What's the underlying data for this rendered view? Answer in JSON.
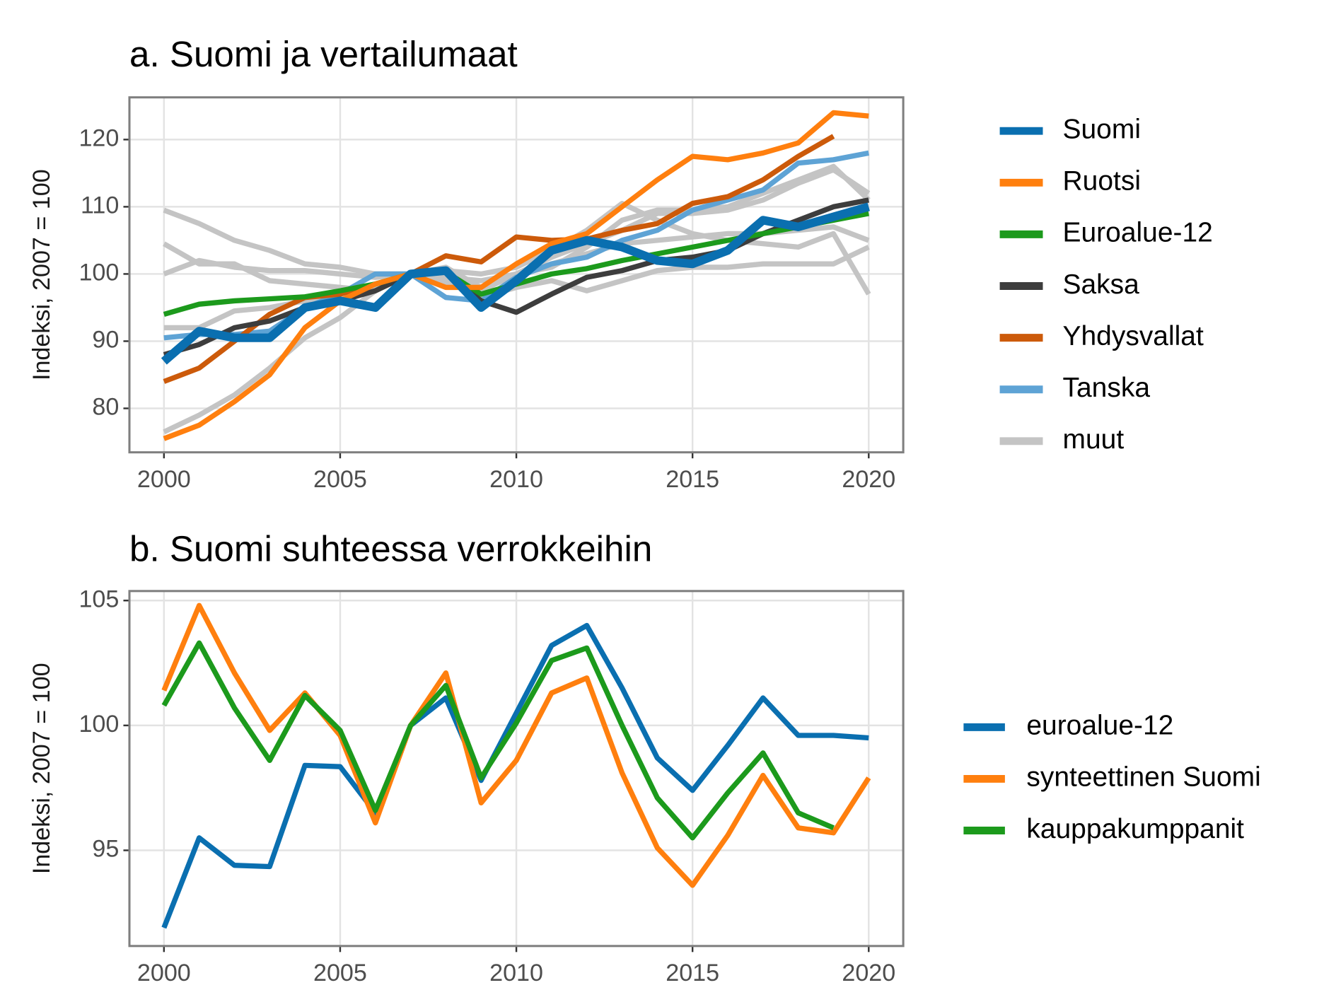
{
  "chart_data": [
    {
      "type": "line",
      "title": "a. Suomi ja vertailumaat",
      "ylabel": "Indeksi, 2007 = 100",
      "x": [
        2000,
        2001,
        2002,
        2003,
        2004,
        2005,
        2006,
        2007,
        2008,
        2009,
        2010,
        2011,
        2012,
        2013,
        2014,
        2015,
        2016,
        2017,
        2018,
        2019,
        2020
      ],
      "xlim": [
        1999.02,
        2020.98
      ],
      "xticks": [
        2000,
        2005,
        2010,
        2015,
        2020
      ],
      "ylim": [
        73.46,
        126.28
      ],
      "yticks": [
        80,
        90,
        100,
        110,
        120
      ],
      "grid": true,
      "legend": "right",
      "series": [
        {
          "name": "muut",
          "color": "#c4c4c4",
          "values": [
            109.5,
            107.5,
            105,
            103.5,
            101.5,
            101,
            100,
            100,
            99.5,
            99,
            100,
            101,
            104,
            108,
            109.5,
            109.5,
            110,
            112,
            114,
            116,
            111
          ]
        },
        {
          "name": "muut",
          "color": "#c4c4c4",
          "values": [
            104.5,
            101.5,
            101.5,
            99,
            98.5,
            98,
            97.5,
            100,
            99,
            96.5,
            98,
            99,
            97.5,
            99,
            100.5,
            101,
            101,
            101.5,
            101.5,
            101.5,
            104
          ]
        },
        {
          "name": "muut",
          "color": "#c4c4c4",
          "values": [
            100,
            102,
            101,
            100.5,
            100.5,
            100,
            99.5,
            100,
            100.5,
            100,
            101,
            103.5,
            106.5,
            110.5,
            108,
            106,
            105,
            104.5,
            104,
            106,
            97
          ]
        },
        {
          "name": "muut",
          "color": "#c4c4c4",
          "values": [
            92,
            92,
            94.5,
            95,
            96,
            96.5,
            98,
            100,
            101,
            98,
            100,
            101.5,
            103,
            104.5,
            105,
            105.5,
            106,
            106,
            106.5,
            107,
            105
          ]
        },
        {
          "name": "muut",
          "color": "#c4c4c4",
          "values": [
            76.5,
            79,
            82,
            86,
            90.5,
            93.5,
            97.5,
            100,
            98.5,
            97.5,
            100,
            102.5,
            104.5,
            106.5,
            109,
            109,
            109.5,
            111,
            113.5,
            115.5,
            112
          ]
        },
        {
          "name": "Tanska",
          "color": "#5ea3d5",
          "values": [
            90.5,
            91,
            91,
            91.5,
            95,
            97,
            100,
            100,
            96.5,
            96,
            99.5,
            101.5,
            102.5,
            105,
            106.5,
            109.5,
            111,
            112.5,
            116.5,
            117,
            118
          ]
        },
        {
          "name": "Yhdysvallat",
          "color": "#cc5a0a",
          "values": [
            84,
            86,
            90,
            94,
            96.5,
            97,
            98.5,
            100,
            102.7,
            101.8,
            105.5,
            105,
            105.2,
            106.5,
            107.5,
            110.5,
            111.5,
            114,
            117.5,
            120.5,
            null
          ]
        },
        {
          "name": "Saksa",
          "color": "#3d3d3d",
          "values": [
            88,
            89.5,
            92,
            93,
            95,
            96,
            97.5,
            100,
            100.5,
            96,
            94.3,
            97,
            99.5,
            100.5,
            102,
            102.5,
            103.5,
            106,
            108,
            110,
            111
          ]
        },
        {
          "name": "Euroalue-12",
          "color": "#1c9a1c",
          "values": [
            94,
            95.5,
            96,
            96.3,
            96.6,
            97.5,
            98.5,
            100,
            100.3,
            97,
            98.5,
            100,
            100.8,
            102,
            103,
            104,
            105,
            106,
            107,
            108,
            109
          ]
        },
        {
          "name": "Ruotsi",
          "color": "#ff7f0e",
          "values": [
            75.5,
            77.5,
            81,
            85,
            92,
            96,
            98.5,
            100,
            98,
            98,
            101.5,
            104.5,
            106,
            110,
            114,
            117.5,
            117,
            118,
            119.5,
            124,
            123.5
          ]
        },
        {
          "name": "Suomi",
          "color": "#0a6fb0",
          "values": [
            87,
            91.5,
            90.5,
            90.5,
            95,
            96,
            95,
            100,
            100.5,
            95,
            99,
            103.5,
            105,
            104,
            102,
            101.5,
            103.5,
            108,
            107,
            108.5,
            110
          ]
        }
      ]
    },
    {
      "type": "line",
      "title": "b. Suomi suhteessa verrokkeihin",
      "ylabel": "Indeksi, 2007 = 100",
      "x": [
        2000,
        2001,
        2002,
        2003,
        2004,
        2005,
        2006,
        2007,
        2008,
        2009,
        2010,
        2011,
        2012,
        2013,
        2014,
        2015,
        2016,
        2017,
        2018,
        2019,
        2020
      ],
      "xlim": [
        1999.02,
        2020.98
      ],
      "xticks": [
        2000,
        2005,
        2010,
        2015,
        2020
      ],
      "ylim": [
        91.17,
        105.38
      ],
      "yticks": [
        95,
        100,
        105
      ],
      "grid": true,
      "legend": "right",
      "series": [
        {
          "name": "euroalue-12",
          "color": "#0a6fb0",
          "values": [
            91.9,
            95.5,
            94.4,
            94.35,
            98.4,
            98.35,
            96.5,
            100,
            101.1,
            97.8,
            100.5,
            103.2,
            104,
            101.5,
            98.7,
            97.4,
            99.2,
            101.1,
            99.6,
            99.6,
            99.5
          ]
        },
        {
          "name": "synteettinen Suomi",
          "color": "#ff7f0e",
          "values": [
            101.4,
            104.8,
            102.1,
            99.8,
            101.3,
            99.6,
            96.1,
            100,
            102.1,
            96.9,
            98.6,
            101.3,
            101.9,
            98.1,
            95.1,
            93.6,
            95.6,
            98,
            95.9,
            95.7,
            97.9
          ]
        },
        {
          "name": "kauppakumppanit",
          "color": "#1c9a1c",
          "values": [
            100.8,
            103.3,
            100.7,
            98.6,
            101.2,
            99.8,
            96.6,
            100,
            101.6,
            97.9,
            100.1,
            102.6,
            103.1,
            100,
            97.1,
            95.5,
            97.3,
            98.9,
            96.5,
            95.9,
            null
          ]
        }
      ]
    }
  ]
}
